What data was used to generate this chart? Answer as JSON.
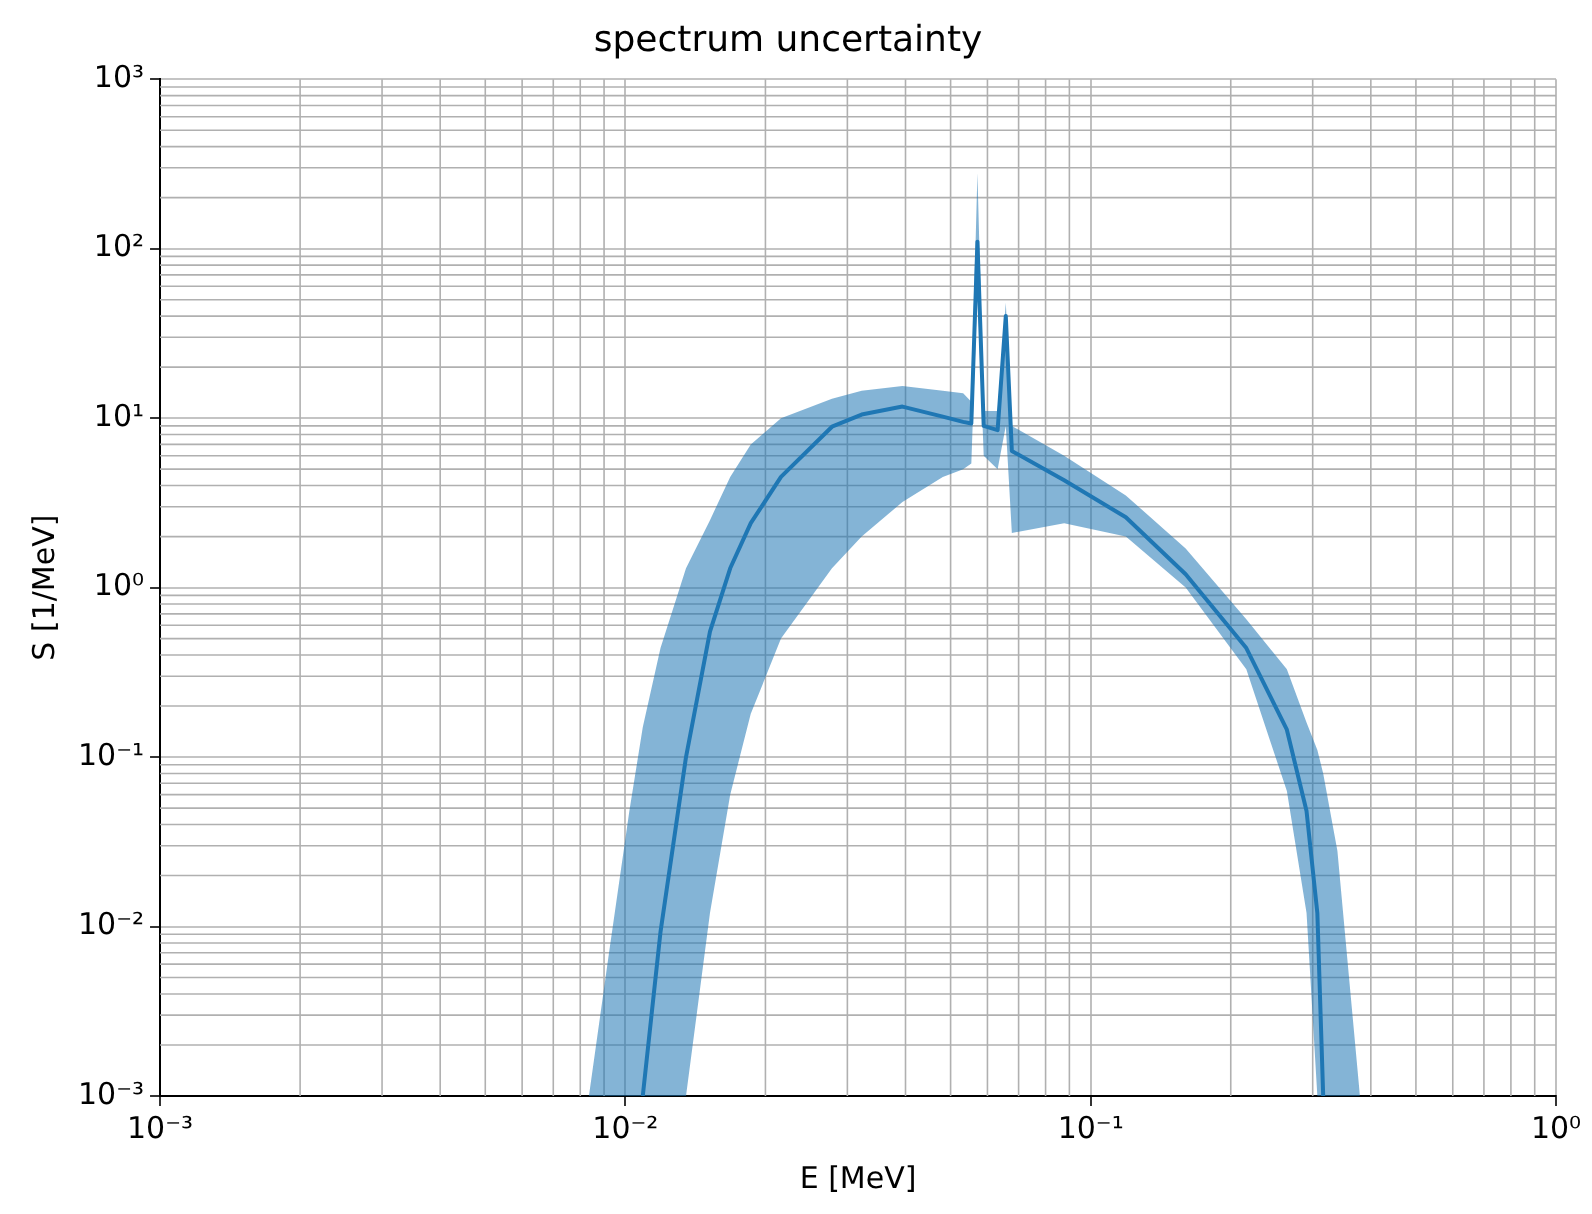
{
  "chart_data": {
    "type": "line",
    "title": "spectrum uncertainty",
    "xlabel": "E [MeV]",
    "ylabel": "S [1/MeV]",
    "x": [
      0.00835,
      0.00923,
      0.0102,
      0.0109,
      0.0119,
      0.0135,
      0.0152,
      0.0168,
      0.0186,
      0.0216,
      0.0278,
      0.0322,
      0.0394,
      0.0481,
      0.0532,
      0.0554,
      0.0571,
      0.0589,
      0.0631,
      0.0657,
      0.0677,
      0.0877,
      0.119,
      0.16,
      0.216,
      0.264,
      0.291,
      0.307,
      0.316,
      0.339,
      0.379
    ],
    "series": [
      {
        "color": "#1f77b4",
        "values": [
          null,
          null,
          null,
          0.001,
          0.0093,
          0.1,
          0.55,
          1.3,
          2.4,
          4.5,
          8.9,
          10.5,
          11.7,
          10.2,
          9.5,
          9.3,
          110,
          9,
          8.5,
          40,
          6.4,
          4.3,
          2.6,
          1.2,
          0.44,
          0.145,
          0.048,
          0.012,
          0.001,
          null,
          null
        ],
        "lower": [
          0.001,
          0.001,
          0.001,
          0.001,
          0.001,
          0.001,
          0.012,
          0.06,
          0.18,
          0.5,
          1.3,
          2,
          3.2,
          4.5,
          5,
          5.4,
          60,
          6,
          5,
          9,
          2.1,
          2.4,
          2,
          1.0,
          0.33,
          0.063,
          0.012,
          0.001,
          0.001,
          0.001,
          0.001
        ],
        "upper": [
          0.001,
          0.0071,
          0.048,
          0.15,
          0.44,
          1.3,
          2.5,
          4.5,
          7,
          10,
          13,
          14.5,
          15.5,
          14.5,
          14,
          12.5,
          280,
          11,
          11,
          48,
          9,
          6,
          3.5,
          1.7,
          0.65,
          0.33,
          0.16,
          0.11,
          0.08,
          0.028,
          0.001
        ]
      }
    ],
    "log": "xy",
    "grid": true,
    "xlim": [
      0.001,
      1
    ],
    "ylim": [
      0.001,
      1000
    ],
    "xticks": [
      {
        "value": 0.001,
        "label": "10⁻³"
      },
      {
        "value": 0.01,
        "label": "10⁻²"
      },
      {
        "value": 0.1,
        "label": "10⁻¹"
      },
      {
        "value": 1,
        "label": "10⁰"
      }
    ],
    "yticks": [
      {
        "value": 0.001,
        "label": "10⁻³"
      },
      {
        "value": 0.01,
        "label": "10⁻²"
      },
      {
        "value": 0.1,
        "label": "10⁻¹"
      },
      {
        "value": 1,
        "label": "10⁰"
      },
      {
        "value": 10,
        "label": "10¹"
      },
      {
        "value": 100,
        "label": "10²"
      },
      {
        "value": 1000,
        "label": "10³"
      }
    ]
  }
}
